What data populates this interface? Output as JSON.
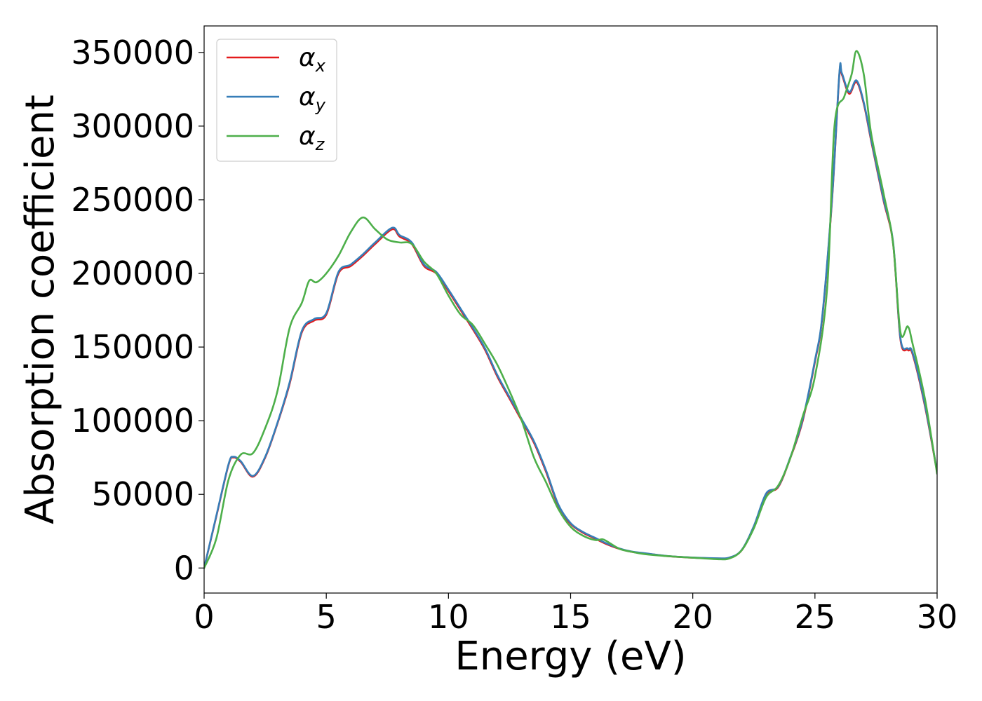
{
  "chart_data": {
    "type": "line",
    "title": "",
    "xlabel": "Energy (eV)",
    "ylabel": "Absorption coefficient",
    "xlim": [
      0,
      30
    ],
    "ylim": [
      -17000,
      368000
    ],
    "xticks": [
      0,
      5,
      10,
      15,
      20,
      25,
      30
    ],
    "yticks": [
      0,
      50000,
      100000,
      150000,
      200000,
      250000,
      300000,
      350000
    ],
    "grid": false,
    "legend_position": "top-left",
    "series": [
      {
        "name": "α",
        "subscript": "x",
        "color": "#e41a1c",
        "x": [
          0,
          0.5,
          1,
          1.2,
          1.5,
          2,
          2.5,
          3,
          3.5,
          4,
          4.5,
          5,
          5.5,
          6,
          6.5,
          7,
          7.7,
          8,
          8.5,
          9,
          9.5,
          10,
          10.5,
          11,
          11.5,
          12,
          12.5,
          13,
          13.5,
          14,
          14.5,
          15,
          15.5,
          16,
          16.5,
          17,
          17.5,
          18,
          19,
          20,
          21,
          21.5,
          22,
          22.5,
          23,
          23.5,
          24,
          24.5,
          25,
          25.3,
          25.7,
          26,
          26.1,
          26.4,
          26.7,
          27,
          27.3,
          27.8,
          28.2,
          28.5,
          28.8,
          29,
          29.5,
          30
        ],
        "values": [
          0,
          35000,
          70000,
          75000,
          72000,
          62000,
          75000,
          98000,
          125000,
          160000,
          168000,
          172000,
          200000,
          205000,
          212000,
          220000,
          230000,
          225000,
          220000,
          205000,
          200000,
          188000,
          175000,
          162000,
          148000,
          130000,
          115000,
          100000,
          85000,
          65000,
          42000,
          30000,
          24000,
          20000,
          16000,
          13000,
          11000,
          10000,
          8000,
          7000,
          6500,
          7000,
          12000,
          28000,
          50000,
          55000,
          75000,
          100000,
          140000,
          170000,
          250000,
          335000,
          335000,
          322000,
          330000,
          315000,
          290000,
          250000,
          220000,
          155000,
          148000,
          145000,
          110000,
          65000
        ]
      },
      {
        "name": "α",
        "subscript": "y",
        "color": "#377eb8",
        "x": [
          0,
          0.5,
          1,
          1.2,
          1.5,
          2,
          2.5,
          3,
          3.5,
          4,
          4.5,
          5,
          5.5,
          6,
          6.5,
          7,
          7.7,
          8,
          8.5,
          9,
          9.5,
          10,
          10.5,
          11,
          11.5,
          12,
          12.5,
          13,
          13.5,
          14,
          14.5,
          15,
          15.5,
          16,
          16.5,
          17,
          17.5,
          18,
          19,
          20,
          21,
          21.5,
          22,
          22.5,
          23,
          23.5,
          24,
          24.5,
          25,
          25.3,
          25.7,
          26,
          26.1,
          26.4,
          26.7,
          27,
          27.3,
          27.8,
          28.2,
          28.5,
          28.8,
          29,
          29.5,
          30
        ],
        "values": [
          0,
          35500,
          70500,
          75500,
          72500,
          62500,
          75500,
          98500,
          126000,
          161000,
          169000,
          173000,
          201000,
          206000,
          213000,
          221000,
          231000,
          226000,
          221000,
          206000,
          201000,
          189000,
          176000,
          163000,
          149000,
          131000,
          116000,
          101000,
          86000,
          66000,
          43000,
          30500,
          24500,
          20500,
          16500,
          13200,
          11200,
          10100,
          8100,
          7100,
          6600,
          7100,
          12200,
          28500,
          50500,
          55500,
          75500,
          101000,
          141000,
          171000,
          251000,
          336000,
          336000,
          323000,
          331000,
          316000,
          291000,
          251000,
          221000,
          156000,
          149000,
          146000,
          111000,
          65500
        ]
      },
      {
        "name": "α",
        "subscript": "z",
        "color": "#4daf4a",
        "x": [
          0,
          0.5,
          1,
          1.5,
          2,
          2.5,
          3,
          3.5,
          4,
          4.3,
          4.6,
          5,
          5.5,
          6,
          6.5,
          7,
          7.5,
          8,
          8.5,
          9,
          9.5,
          10,
          10.5,
          11,
          11.5,
          12,
          12.5,
          13,
          13.5,
          14,
          14.5,
          15,
          15.5,
          16,
          16.3,
          16.5,
          17,
          17.5,
          18,
          19,
          20,
          21,
          21.5,
          22,
          22.5,
          23,
          23.5,
          24,
          24.5,
          25,
          25.5,
          25.8,
          26.2,
          26.5,
          26.7,
          27,
          27.3,
          27.8,
          28.2,
          28.5,
          28.8,
          29,
          29.5,
          30
        ],
        "values": [
          0,
          20000,
          60000,
          77000,
          78000,
          95000,
          120000,
          163000,
          180000,
          195000,
          194000,
          200000,
          212000,
          228000,
          238000,
          230000,
          223000,
          221000,
          220000,
          208000,
          200000,
          185000,
          172000,
          165000,
          152000,
          138000,
          120000,
          100000,
          75000,
          58000,
          40000,
          28000,
          22000,
          19000,
          19500,
          18000,
          13000,
          11000,
          9500,
          8000,
          7000,
          6000,
          6500,
          12000,
          27000,
          48000,
          56000,
          75000,
          103000,
          130000,
          190000,
          300000,
          320000,
          335000,
          351000,
          335000,
          295000,
          255000,
          220000,
          160000,
          164000,
          152000,
          115000,
          64000
        ]
      }
    ]
  }
}
